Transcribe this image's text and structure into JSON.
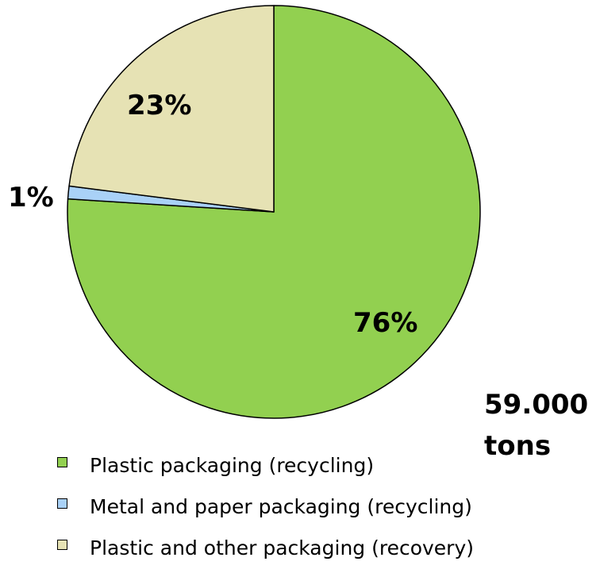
{
  "chart_data": {
    "type": "pie",
    "slices": [
      {
        "label": "Plastic packaging (recycling)",
        "value": 76,
        "value_label": "76%",
        "color": "#92d050"
      },
      {
        "label": "Metal and paper packaging (recycling)",
        "value": 1,
        "value_label": "1%",
        "color": "#a9d1f7"
      },
      {
        "label": "Plastic and other packaging (recovery)",
        "value": 23,
        "value_label": "23%",
        "color": "#e6e2b4"
      }
    ],
    "start": "12 o'clock, clockwise",
    "legend_position": "bottom-left"
  },
  "total": {
    "line1": "59.000",
    "line2": "tons"
  }
}
